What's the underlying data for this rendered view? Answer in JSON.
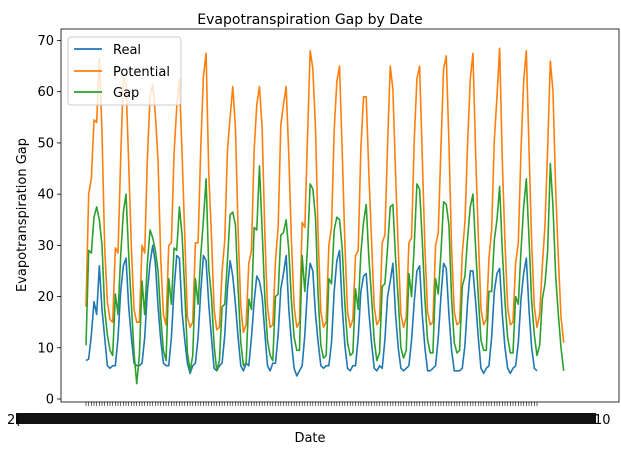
{
  "chart_data": {
    "type": "line",
    "title": "Evapotranspiration Gap by Date",
    "xlabel": "Date",
    "ylabel": "Evapotranspiration Gap",
    "ylim": [
      0,
      72
    ],
    "yticks": [
      0,
      10,
      20,
      30,
      40,
      50,
      60,
      70
    ],
    "grid": false,
    "legend": "top-left",
    "x_tick_labels_note": "dense, overlapping date labels",
    "x_edge_labels": [
      "2(",
      "10"
    ],
    "series": [
      {
        "name": "Real",
        "color": "#1f77b4",
        "values": [
          7.5,
          7.8,
          12.5,
          19.0,
          16.5,
          26.0,
          17.5,
          12.0,
          6.5,
          6.0,
          6.5,
          6.5,
          12.0,
          21.0,
          26.0,
          27.5,
          18.0,
          12.0,
          7.0,
          6.5,
          6.5,
          7.0,
          12.0,
          21.0,
          26.5,
          30.0,
          26.5,
          18.0,
          11.5,
          7.0,
          6.5,
          6.5,
          12.0,
          21.5,
          28.0,
          27.5,
          17.0,
          11.5,
          7.0,
          5.0,
          6.5,
          7.0,
          12.0,
          21.0,
          28.0,
          27.0,
          18.5,
          12.0,
          6.0,
          5.5,
          6.5,
          7.0,
          12.5,
          21.5,
          27.0,
          24.0,
          18.5,
          12.0,
          6.5,
          5.5,
          7.0,
          6.5,
          12.0,
          19.0,
          24.0,
          23.0,
          20.0,
          13.0,
          6.5,
          5.5,
          7.0,
          7.0,
          12.5,
          21.5,
          24.5,
          28.0,
          17.5,
          11.0,
          6.0,
          4.5,
          5.5,
          6.5,
          12.5,
          21.5,
          26.5,
          25.0,
          16.5,
          11.0,
          6.5,
          6.0,
          6.5,
          6.5,
          11.0,
          21.0,
          27.0,
          29.0,
          18.0,
          10.5,
          6.0,
          5.5,
          6.5,
          6.5,
          12.0,
          21.0,
          24.0,
          24.5,
          17.0,
          11.0,
          6.0,
          5.5,
          6.5,
          6.0,
          11.5,
          20.0,
          23.0,
          26.5,
          16.5,
          10.0,
          6.0,
          5.5,
          6.0,
          6.5,
          11.5,
          19.0,
          25.0,
          26.0,
          16.5,
          10.0,
          5.5,
          5.5,
          6.0,
          6.5,
          12.0,
          20.0,
          26.5,
          25.5,
          16.5,
          9.5,
          5.5,
          5.5,
          5.5,
          6.0,
          10.5,
          19.0,
          25.0,
          25.0,
          19.0,
          12.0,
          6.0,
          5.0,
          6.0,
          6.5,
          12.0,
          21.0,
          24.5,
          25.5,
          16.5,
          10.0,
          6.0,
          5.0,
          6.0,
          6.5,
          11.0,
          19.5,
          24.5,
          27.5,
          17.5,
          10.0,
          6.0,
          5.5
        ]
      },
      {
        "name": "Potential",
        "color": "#ff7f0e",
        "values": [
          18.0,
          40.0,
          43.0,
          54.5,
          54.0,
          66.5,
          52.0,
          29.5,
          19.0,
          15.5,
          15.0,
          29.5,
          28.5,
          47.0,
          63.0,
          61.5,
          46.0,
          29.5,
          17.5,
          15.0,
          15.0,
          30.0,
          28.5,
          47.0,
          59.0,
          61.5,
          55.5,
          46.5,
          27.5,
          16.5,
          14.5,
          30.0,
          30.5,
          48.0,
          57.0,
          62.5,
          48.0,
          32.0,
          16.0,
          14.0,
          15.0,
          30.5,
          30.5,
          49.0,
          63.0,
          67.5,
          44.0,
          32.0,
          17.5,
          13.5,
          14.0,
          25.0,
          31.0,
          48.5,
          55.0,
          61.0,
          53.0,
          33.0,
          18.0,
          13.0,
          14.5,
          26.5,
          29.0,
          48.5,
          57.5,
          61.0,
          53.0,
          32.5,
          18.0,
          14.0,
          14.5,
          27.0,
          33.5,
          53.5,
          57.5,
          61.0,
          47.5,
          30.5,
          18.0,
          14.0,
          15.0,
          34.5,
          33.5,
          51.0,
          68.0,
          64.5,
          53.0,
          31.5,
          17.0,
          14.0,
          15.0,
          30.0,
          33.5,
          52.5,
          62.0,
          65.0,
          48.5,
          30.5,
          17.0,
          14.0,
          15.5,
          28.0,
          29.0,
          49.0,
          59.0,
          59.0,
          44.0,
          31.0,
          18.0,
          14.5,
          15.5,
          30.5,
          32.0,
          49.5,
          65.0,
          60.5,
          44.0,
          29.5,
          16.5,
          14.0,
          16.0,
          30.5,
          31.5,
          50.5,
          62.5,
          65.0,
          47.5,
          29.5,
          17.0,
          14.5,
          15.0,
          30.0,
          32.5,
          49.0,
          64.5,
          67.0,
          50.0,
          29.5,
          17.0,
          14.5,
          15.0,
          28.5,
          34.5,
          50.0,
          62.5,
          67.5,
          48.0,
          32.0,
          17.5,
          14.5,
          15.5,
          27.5,
          33.0,
          50.5,
          59.0,
          68.5,
          46.5,
          30.5,
          18.0,
          14.5,
          15.0,
          26.5,
          30.5,
          48.5,
          62.0,
          68.0,
          49.0,
          30.5,
          18.0,
          14.0,
          16.5,
          26.0,
          34.0,
          49.0,
          66.0,
          60.0,
          41.0,
          27.5,
          16.0,
          11.0
        ]
      },
      {
        "name": "Gap",
        "color": "#2ca02c",
        "values": [
          10.5,
          29.0,
          28.5,
          35.5,
          37.5,
          35.0,
          30.0,
          17.5,
          12.5,
          9.5,
          8.5,
          20.5,
          16.5,
          28.0,
          36.5,
          40.0,
          28.0,
          18.5,
          9.0,
          3.0,
          8.5,
          23.0,
          16.5,
          26.5,
          33.0,
          31.5,
          29.0,
          25.0,
          16.0,
          9.5,
          7.5,
          23.5,
          18.5,
          29.5,
          29.0,
          37.5,
          32.0,
          21.0,
          9.0,
          5.5,
          8.5,
          23.5,
          18.5,
          28.0,
          35.0,
          43.0,
          25.5,
          20.0,
          10.5,
          5.5,
          7.5,
          18.0,
          18.5,
          27.0,
          36.0,
          36.5,
          34.0,
          21.5,
          11.0,
          6.5,
          7.0,
          19.5,
          17.5,
          33.5,
          33.0,
          45.5,
          33.0,
          20.0,
          11.5,
          8.5,
          7.5,
          20.0,
          20.5,
          32.0,
          32.5,
          35.0,
          29.0,
          19.0,
          12.0,
          9.5,
          9.5,
          28.0,
          21.0,
          29.5,
          42.0,
          41.0,
          35.5,
          20.0,
          10.5,
          8.0,
          8.5,
          23.5,
          22.5,
          33.0,
          35.5,
          35.0,
          29.5,
          18.5,
          11.0,
          8.5,
          9.0,
          21.5,
          17.5,
          28.5,
          34.5,
          38.0,
          27.5,
          20.0,
          11.5,
          7.5,
          9.0,
          22.0,
          22.5,
          29.5,
          37.5,
          38.0,
          27.5,
          19.5,
          10.0,
          8.0,
          9.5,
          24.5,
          20.0,
          30.0,
          42.0,
          41.0,
          31.0,
          19.5,
          11.5,
          9.0,
          9.0,
          23.5,
          20.5,
          28.5,
          38.5,
          38.0,
          34.0,
          19.5,
          11.0,
          9.0,
          9.5,
          22.0,
          24.0,
          31.5,
          37.5,
          40.0,
          29.5,
          20.0,
          11.5,
          9.5,
          9.5,
          21.0,
          21.0,
          31.0,
          35.0,
          41.5,
          29.0,
          19.0,
          12.0,
          9.0,
          9.0,
          20.0,
          18.5,
          29.0,
          37.5,
          43.0,
          31.5,
          19.0,
          12.5,
          8.5,
          10.5,
          19.5,
          22.5,
          29.0,
          46.0,
          37.5,
          24.0,
          16.5,
          10.0,
          5.5
        ]
      }
    ]
  }
}
